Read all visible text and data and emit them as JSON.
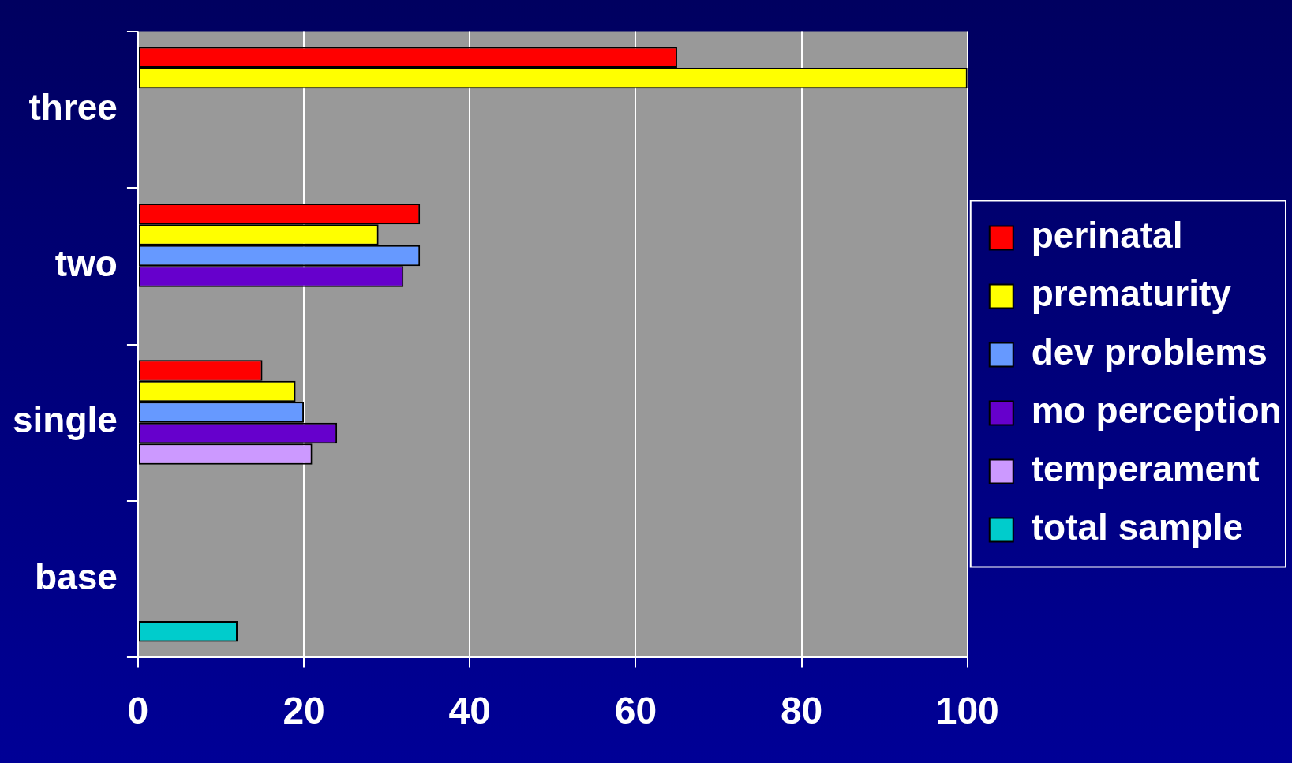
{
  "chart_data": {
    "type": "bar",
    "orientation": "horizontal",
    "categories": [
      "three",
      "two",
      "single",
      "base"
    ],
    "series": [
      {
        "name": "perinatal",
        "color": "#ff0000",
        "values": [
          65,
          34,
          15,
          null
        ]
      },
      {
        "name": "prematurity",
        "color": "#ffff00",
        "values": [
          100,
          29,
          19,
          null
        ]
      },
      {
        "name": "dev problems",
        "color": "#6699ff",
        "values": [
          null,
          34,
          20,
          null
        ]
      },
      {
        "name": "mo perception",
        "color": "#6600cc",
        "values": [
          null,
          32,
          24,
          null
        ]
      },
      {
        "name": "temperament",
        "color": "#cc99ff",
        "values": [
          null,
          null,
          21,
          null
        ]
      },
      {
        "name": "total sample",
        "color": "#00cccc",
        "values": [
          null,
          null,
          null,
          12
        ]
      }
    ],
    "xlim": [
      0,
      100
    ],
    "xticks": [
      0,
      20,
      40,
      60,
      80,
      100
    ],
    "grid": "x",
    "legend": "right"
  }
}
